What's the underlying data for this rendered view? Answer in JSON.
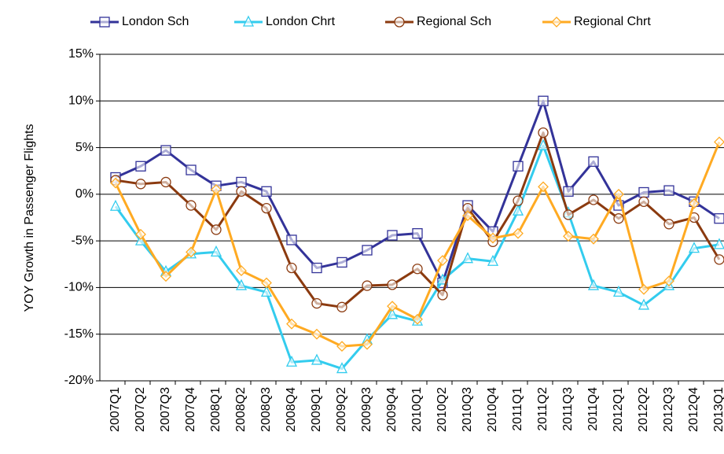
{
  "chart_data": {
    "type": "line",
    "y_label": "YOY Growth in Passenger Flights",
    "categories": [
      "2007Q1",
      "2007Q2",
      "2007Q3",
      "2007Q4",
      "2008Q1",
      "2008Q2",
      "2008Q3",
      "2008Q4",
      "2009Q1",
      "2009Q2",
      "2009Q3",
      "2009Q4",
      "2010Q1",
      "2010Q2",
      "2010Q3",
      "2010Q4",
      "2011Q1",
      "2011Q2",
      "2011Q3",
      "2011Q4",
      "2012Q1",
      "2012Q2",
      "2012Q3",
      "2012Q4",
      "2013Q1"
    ],
    "series": [
      {
        "name": "London Sch",
        "color": "#333399",
        "marker": "square",
        "values": [
          1.8,
          3.0,
          4.7,
          2.6,
          0.9,
          1.3,
          0.3,
          -4.9,
          -7.9,
          -7.3,
          -6.0,
          -4.4,
          -4.2,
          -9.5,
          -1.2,
          -4.0,
          3.0,
          10.0,
          0.3,
          3.5,
          -1.2,
          0.2,
          0.4,
          -0.8,
          -2.6
        ]
      },
      {
        "name": "London Chrt",
        "color": "#33ccee",
        "marker": "triangle",
        "values": [
          -1.3,
          -5.0,
          -8.3,
          -6.4,
          -6.2,
          -9.8,
          -10.5,
          -18.0,
          -17.8,
          -18.7,
          -15.6,
          -12.9,
          -13.6,
          -9.2,
          -6.9,
          -7.2,
          -1.8,
          5.2,
          -2.0,
          -9.8,
          -10.5,
          -11.9,
          -9.8,
          -5.8,
          -5.4
        ]
      },
      {
        "name": "Regional Sch",
        "color": "#8b3a0f",
        "marker": "circle",
        "values": [
          1.5,
          1.1,
          1.3,
          -1.2,
          -3.8,
          0.3,
          -1.5,
          -7.9,
          -11.7,
          -12.1,
          -9.8,
          -9.7,
          -8.0,
          -10.8,
          -1.5,
          -5.1,
          -0.7,
          6.6,
          -2.2,
          -0.6,
          -2.6,
          -0.8,
          -3.2,
          -2.5,
          -7.0
        ]
      },
      {
        "name": "Regional Chrt",
        "color": "#ffaa22",
        "marker": "diamond",
        "values": [
          1.2,
          -4.3,
          -8.8,
          -6.2,
          0.5,
          -8.2,
          -9.5,
          -13.9,
          -15.0,
          -16.3,
          -16.1,
          -12.0,
          -13.4,
          -7.1,
          -2.3,
          -4.7,
          -4.2,
          0.8,
          -4.5,
          -4.8,
          0.0,
          -10.2,
          -9.3,
          -1.0,
          5.6
        ]
      }
    ],
    "ylim": [
      -20,
      15
    ],
    "yticks": [
      {
        "value": -20,
        "label": "-20%"
      },
      {
        "value": -15,
        "label": "-15%"
      },
      {
        "value": -10,
        "label": "-10%"
      },
      {
        "value": -5,
        "label": "-5%"
      },
      {
        "value": 0,
        "label": "0%"
      },
      {
        "value": 5,
        "label": "5%"
      },
      {
        "value": 10,
        "label": "10%"
      },
      {
        "value": 15,
        "label": "15%"
      }
    ],
    "grid": true,
    "legend": "top"
  }
}
